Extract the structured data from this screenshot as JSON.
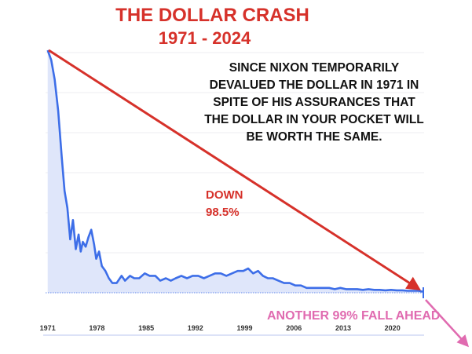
{
  "title": "THE DOLLAR CRASH",
  "subtitle": "1971 - 2024",
  "description_lines": [
    "SINCE NIXON TEMPORARILY",
    "DEVALUED THE DOLLAR IN 1971 IN",
    "SPITE OF HIS ASSURANCES THAT",
    "THE DOLLAR IN YOUR POCKET WILL",
    "BE WORTH THE SAME."
  ],
  "down_annotation": {
    "line1": "DOWN",
    "line2": "98.5%"
  },
  "future_annotation": "ANOTHER  99% FALL AHEAD",
  "colors": {
    "title": "#d6312a",
    "line": "#3d6ee8",
    "area": "#dfe6fa",
    "trend_arrow": "#d6312a",
    "future_arrow": "#e06bb0"
  },
  "chart_data": {
    "type": "area",
    "title": "THE DOLLAR CRASH",
    "subtitle": "1971 - 2024",
    "xlabel": "",
    "ylabel": "",
    "x_ticks": [
      "1971",
      "1978",
      "1985",
      "1992",
      "1999",
      "2006",
      "2013",
      "2020"
    ],
    "xlim": [
      1970.7,
      2024.5
    ],
    "ylim": [
      0,
      100
    ],
    "grid": "horizontal",
    "series": [
      {
        "x": [
          1971.0,
          1971.5,
          1972.0,
          1972.5,
          1973.0,
          1973.4,
          1973.8,
          1974.2,
          1974.6,
          1975.0,
          1975.4,
          1975.7,
          1976.0,
          1976.4,
          1976.8,
          1977.2,
          1977.6,
          1977.9,
          1978.3,
          1978.7,
          1979.2,
          1979.7,
          1980.2,
          1980.8,
          1981.5,
          1982.0,
          1982.7,
          1983.3,
          1984.0,
          1984.8,
          1985.5,
          1986.3,
          1987.0,
          1987.8,
          1988.5,
          1989.2,
          1990.0,
          1990.8,
          1991.6,
          1992.4,
          1993.2,
          1994.0,
          1994.8,
          1995.6,
          1996.4,
          1997.2,
          1998.0,
          1998.8,
          1999.5,
          2000.2,
          2000.9,
          2001.6,
          2002.3,
          2003.0,
          2003.8,
          2004.6,
          2005.4,
          2006.2,
          2007.0,
          2007.8,
          2008.6,
          2009.4,
          2010.2,
          2011.0,
          2011.8,
          2012.6,
          2013.4,
          2014.2,
          2015.0,
          2015.8,
          2016.6,
          2017.4,
          2018.2,
          2019.0,
          2019.8,
          2020.6,
          2021.4,
          2022.2,
          2023.0,
          2023.7,
          2024.3
        ],
        "y": [
          100,
          96,
          88,
          75,
          56,
          42,
          35,
          22,
          30,
          18,
          24,
          17,
          21,
          19,
          23,
          26,
          20,
          14,
          17,
          11,
          9,
          6,
          4,
          4,
          7,
          5,
          7,
          6,
          6,
          8,
          7,
          7,
          5,
          6,
          5,
          6,
          7,
          6,
          7,
          7,
          6,
          7,
          8,
          8,
          7,
          8,
          9,
          9,
          10,
          8,
          9,
          7,
          6,
          6,
          5,
          4,
          4,
          3,
          3,
          2,
          2,
          2,
          2,
          2,
          1.5,
          2,
          1.5,
          1.5,
          1.5,
          1.2,
          1.5,
          1.2,
          1.2,
          1,
          1.2,
          1,
          1,
          0.8,
          0.8,
          0.8,
          0.5
        ]
      }
    ],
    "annotations": [
      "DOWN",
      "98.5%",
      "ANOTHER  99% FALL AHEAD"
    ]
  }
}
